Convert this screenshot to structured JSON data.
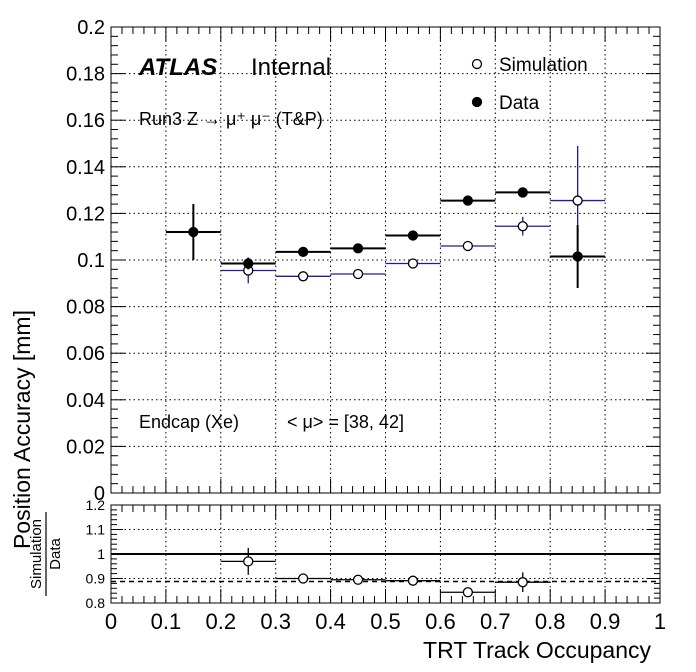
{
  "chart_data": [
    {
      "type": "scatter",
      "title": "",
      "atlas": {
        "brand": "ATLAS",
        "status": "Internal"
      },
      "annotations": {
        "process": "Run3 Z → μ⁺ μ⁻ (T&P)",
        "region": "Endcap (Xe)",
        "pileup": "< μ> = [38, 42]"
      },
      "xlabel": "TRT Track Occupancy",
      "ylabel": "Position Accuracy [mm]",
      "xlim": [
        0,
        1
      ],
      "ylim": [
        0,
        0.2
      ],
      "x_ticks": [
        "0",
        "0.1",
        "0.2",
        "0.3",
        "0.4",
        "0.5",
        "0.6",
        "0.7",
        "0.8",
        "0.9",
        "1"
      ],
      "y_ticks": [
        "0",
        "0.02",
        "0.04",
        "0.06",
        "0.08",
        "0.1",
        "0.12",
        "0.14",
        "0.16",
        "0.18",
        "0.2"
      ],
      "grid": true,
      "legend_position": "top-right",
      "series": [
        {
          "name": "Simulation",
          "marker": "open-circle",
          "color": "#1c1ca8",
          "points": [
            {
              "x": 0.25,
              "x_err": 0.05,
              "y": 0.0955,
              "y_err": 0.0055
            },
            {
              "x": 0.35,
              "x_err": 0.05,
              "y": 0.093,
              "y_err": 0.0008
            },
            {
              "x": 0.45,
              "x_err": 0.05,
              "y": 0.094,
              "y_err": 0.0008
            },
            {
              "x": 0.55,
              "x_err": 0.05,
              "y": 0.0985,
              "y_err": 0.0008
            },
            {
              "x": 0.65,
              "x_err": 0.05,
              "y": 0.106,
              "y_err": 0.0008
            },
            {
              "x": 0.75,
              "x_err": 0.05,
              "y": 0.1145,
              "y_err": 0.004
            },
            {
              "x": 0.85,
              "x_err": 0.05,
              "y": 0.1255,
              "y_err": 0.0235
            }
          ]
        },
        {
          "name": "Data",
          "marker": "filled-circle",
          "color": "#000000",
          "points": [
            {
              "x": 0.15,
              "x_err": 0.05,
              "y": 0.112,
              "y_err": 0.012
            },
            {
              "x": 0.25,
              "x_err": 0.05,
              "y": 0.0985,
              "y_err": 0.0025
            },
            {
              "x": 0.35,
              "x_err": 0.05,
              "y": 0.1035,
              "y_err": 0.0008
            },
            {
              "x": 0.45,
              "x_err": 0.05,
              "y": 0.105,
              "y_err": 0.0008
            },
            {
              "x": 0.55,
              "x_err": 0.05,
              "y": 0.1105,
              "y_err": 0.0008
            },
            {
              "x": 0.65,
              "x_err": 0.05,
              "y": 0.1255,
              "y_err": 0.0008
            },
            {
              "x": 0.75,
              "x_err": 0.05,
              "y": 0.129,
              "y_err": 0.0008
            },
            {
              "x": 0.85,
              "x_err": 0.05,
              "y": 0.1015,
              "y_err": 0.0135
            }
          ]
        }
      ]
    },
    {
      "type": "scatter",
      "ylabel_numerator": "Simulation",
      "ylabel_denominator": "Data",
      "xlabel": "TRT Track Occupancy",
      "xlim": [
        0,
        1
      ],
      "ylim": [
        0.8,
        1.2
      ],
      "y_ticks": [
        "0.8",
        "0.9",
        "1",
        "1.1",
        "1.2"
      ],
      "grid": true,
      "reference_lines": [
        {
          "y": 1.0,
          "style": "solid"
        },
        {
          "y": 0.888,
          "style": "dashed"
        }
      ],
      "series": [
        {
          "name": "Simulation/Data",
          "marker": "open-circle",
          "color": "#000000",
          "points": [
            {
              "x": 0.25,
              "x_err": 0.05,
              "y": 0.97,
              "y_err": 0.055
            },
            {
              "x": 0.35,
              "x_err": 0.05,
              "y": 0.9,
              "y_err": 0.006
            },
            {
              "x": 0.45,
              "x_err": 0.05,
              "y": 0.895,
              "y_err": 0.006
            },
            {
              "x": 0.55,
              "x_err": 0.05,
              "y": 0.891,
              "y_err": 0.006
            },
            {
              "x": 0.65,
              "x_err": 0.05,
              "y": 0.844,
              "y_err": 0.006
            },
            {
              "x": 0.75,
              "x_err": 0.05,
              "y": 0.885,
              "y_err": 0.04
            }
          ]
        }
      ]
    }
  ]
}
